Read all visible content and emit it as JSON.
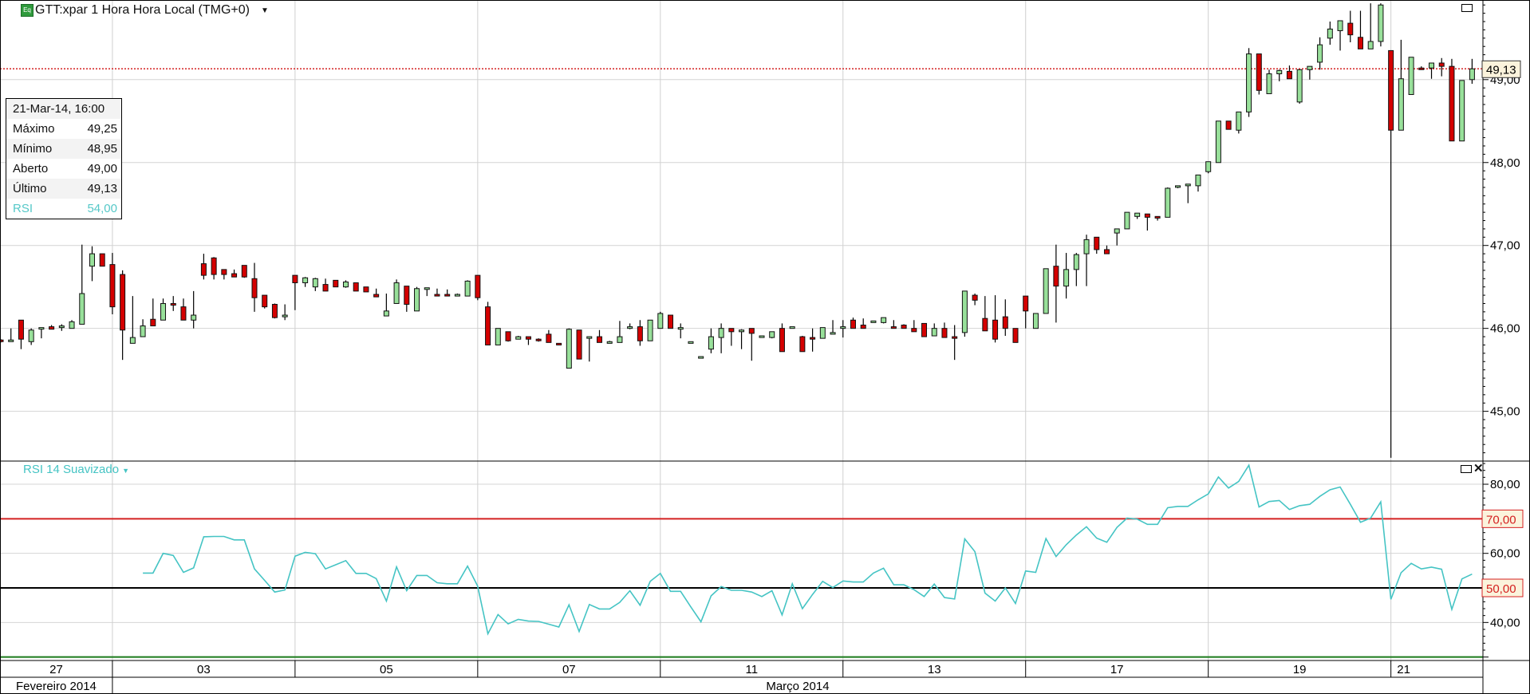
{
  "header": {
    "title": "GTT:xpar 1 Hora Hora Local (TMG+0)",
    "icon_text": "Eq",
    "dropdown_icon": "caret-down"
  },
  "info_panel": {
    "datetime": "21-Mar-14, 16:00",
    "rows": [
      {
        "label": "Máximo",
        "value": "49,25"
      },
      {
        "label": "Mínimo",
        "value": "48,95"
      },
      {
        "label": "Aberto",
        "value": "49,00"
      },
      {
        "label": "Último",
        "value": "49,13"
      },
      {
        "label": "RSI",
        "value": "54,00"
      }
    ]
  },
  "rsi_pane": {
    "label": "RSI 14 Suavizado",
    "maximize_icon": "window-maximize",
    "close_icon": "close"
  },
  "price_pane": {
    "maximize_icon": "window-maximize"
  },
  "colors": {
    "up": "#98e09a",
    "down": "#d40000",
    "rsi_line": "#45c4c4",
    "overbought": "#d42020",
    "midline": "#000000",
    "oversold": "#1a7a1a",
    "last_price": "#d42020"
  },
  "chart_data": [
    {
      "type": "candlestick",
      "ylim": [
        44.4,
        49.96
      ],
      "y_ticks": [
        {
          "v": 45,
          "label": "45,00"
        },
        {
          "v": 46,
          "label": "46,00"
        },
        {
          "v": 47,
          "label": "47,00"
        },
        {
          "v": 48,
          "label": "48,00"
        },
        {
          "v": 49,
          "label": "49,00"
        }
      ],
      "last_price": {
        "value": 49.13,
        "label": "49,13"
      },
      "grid": true,
      "ohlc": [
        [
          45.86,
          45.87,
          45.83,
          45.84
        ],
        [
          45.84,
          46.0,
          45.84,
          45.86
        ],
        [
          46.1,
          46.1,
          45.75,
          45.87
        ],
        [
          45.84,
          46.0,
          45.8,
          45.98
        ],
        [
          46.0,
          46.01,
          45.88,
          46.01
        ],
        [
          46.02,
          46.04,
          45.99,
          45.99
        ],
        [
          46.01,
          46.05,
          45.97,
          46.03
        ],
        [
          46.0,
          46.1,
          46.0,
          46.08
        ],
        [
          46.05,
          47.01,
          46.05,
          46.42
        ],
        [
          46.75,
          46.99,
          46.57,
          46.9
        ],
        [
          46.9,
          46.9,
          46.75,
          46.75
        ],
        [
          46.77,
          46.91,
          46.17,
          46.26
        ],
        [
          46.65,
          46.7,
          45.62,
          45.98
        ],
        [
          45.82,
          46.39,
          45.82,
          45.89
        ],
        [
          45.9,
          46.11,
          45.9,
          46.03
        ],
        [
          46.11,
          46.36,
          46.03,
          46.03
        ],
        [
          46.1,
          46.36,
          46.1,
          46.3
        ],
        [
          46.3,
          46.39,
          46.21,
          46.28
        ],
        [
          46.26,
          46.36,
          46.1,
          46.1
        ],
        [
          46.1,
          46.45,
          46.0,
          46.16
        ],
        [
          46.78,
          46.9,
          46.59,
          46.64
        ],
        [
          46.85,
          46.86,
          46.59,
          46.65
        ],
        [
          46.71,
          46.71,
          46.59,
          46.65
        ],
        [
          46.66,
          46.71,
          46.62,
          46.62
        ],
        [
          46.76,
          46.76,
          46.61,
          46.62
        ],
        [
          46.6,
          46.79,
          46.2,
          46.37
        ],
        [
          46.4,
          46.4,
          46.24,
          46.26
        ],
        [
          46.29,
          46.3,
          46.12,
          46.13
        ],
        [
          46.14,
          46.29,
          46.1,
          46.16
        ],
        [
          46.64,
          46.64,
          46.22,
          46.55
        ],
        [
          46.55,
          46.62,
          46.5,
          46.61
        ],
        [
          46.5,
          46.61,
          46.45,
          46.6
        ],
        [
          46.53,
          46.6,
          46.45,
          46.45
        ],
        [
          46.58,
          46.58,
          46.5,
          46.5
        ],
        [
          46.5,
          46.58,
          46.49,
          46.56
        ],
        [
          46.55,
          46.55,
          46.45,
          46.45
        ],
        [
          46.5,
          46.5,
          46.44,
          46.44
        ],
        [
          46.41,
          46.48,
          46.38,
          46.38
        ],
        [
          46.15,
          46.42,
          46.15,
          46.21
        ],
        [
          46.3,
          46.59,
          46.3,
          46.55
        ],
        [
          46.51,
          46.51,
          46.2,
          46.29
        ],
        [
          46.21,
          46.5,
          46.21,
          46.48
        ],
        [
          46.47,
          46.49,
          46.39,
          46.49
        ],
        [
          46.41,
          46.48,
          46.39,
          46.39
        ],
        [
          46.41,
          46.47,
          46.39,
          46.39
        ],
        [
          46.39,
          46.42,
          46.39,
          46.41
        ],
        [
          46.39,
          46.58,
          46.39,
          46.57
        ],
        [
          46.64,
          46.64,
          46.34,
          46.37
        ],
        [
          46.26,
          46.32,
          45.8,
          45.8
        ],
        [
          45.8,
          46.0,
          45.8,
          46.0
        ],
        [
          45.96,
          45.96,
          45.84,
          45.85
        ],
        [
          45.87,
          45.91,
          45.87,
          45.9
        ],
        [
          45.9,
          45.9,
          45.8,
          45.87
        ],
        [
          45.87,
          45.88,
          45.84,
          45.86
        ],
        [
          45.93,
          45.98,
          45.83,
          45.83
        ],
        [
          45.82,
          45.82,
          45.8,
          45.8
        ],
        [
          45.52,
          46.0,
          45.52,
          45.99
        ],
        [
          45.98,
          45.98,
          45.63,
          45.63
        ],
        [
          45.88,
          45.9,
          45.6,
          45.9
        ],
        [
          45.9,
          45.98,
          45.83,
          45.83
        ],
        [
          45.82,
          45.85,
          45.82,
          45.84
        ],
        [
          45.83,
          46.09,
          45.83,
          45.9
        ],
        [
          46.0,
          46.06,
          45.99,
          46.02
        ],
        [
          46.02,
          46.1,
          45.79,
          45.85
        ],
        [
          45.85,
          46.1,
          45.85,
          46.1
        ],
        [
          46.0,
          46.2,
          46.0,
          46.18
        ],
        [
          46.16,
          46.16,
          46.0,
          46.0
        ],
        [
          45.99,
          46.06,
          45.88,
          46.01
        ],
        [
          45.82,
          45.84,
          45.82,
          45.84
        ],
        [
          45.64,
          45.66,
          45.64,
          45.66
        ],
        [
          45.75,
          46.0,
          45.7,
          45.9
        ],
        [
          45.89,
          46.06,
          45.7,
          46.0
        ],
        [
          46.0,
          46.0,
          45.79,
          45.96
        ],
        [
          45.96,
          45.99,
          45.75,
          45.98
        ],
        [
          46.0,
          46.0,
          45.61,
          45.94
        ],
        [
          45.89,
          45.91,
          45.89,
          45.91
        ],
        [
          45.89,
          45.96,
          45.88,
          45.96
        ],
        [
          46.0,
          46.06,
          45.72,
          45.72
        ],
        [
          46.0,
          46.02,
          46.0,
          46.02
        ],
        [
          45.9,
          45.91,
          45.72,
          45.72
        ],
        [
          45.89,
          46.0,
          45.72,
          45.87
        ],
        [
          45.88,
          46.01,
          45.88,
          46.01
        ],
        [
          45.93,
          46.1,
          45.93,
          45.95
        ],
        [
          46.0,
          46.1,
          45.89,
          46.02
        ],
        [
          46.1,
          46.13,
          46.0,
          46.0
        ],
        [
          46.04,
          46.12,
          46.0,
          46.0
        ],
        [
          46.07,
          46.09,
          46.07,
          46.09
        ],
        [
          46.07,
          46.13,
          46.06,
          46.13
        ],
        [
          46.02,
          46.1,
          46.0,
          46.0
        ],
        [
          46.04,
          46.05,
          46.0,
          46.0
        ],
        [
          46.0,
          46.1,
          45.96,
          45.96
        ],
        [
          46.06,
          46.06,
          45.9,
          45.9
        ],
        [
          45.91,
          46.06,
          45.91,
          46.0
        ],
        [
          46.0,
          46.07,
          45.89,
          45.89
        ],
        [
          45.9,
          46.04,
          45.62,
          45.88
        ],
        [
          45.95,
          46.45,
          45.9,
          46.45
        ],
        [
          46.4,
          46.42,
          46.28,
          46.34
        ],
        [
          46.12,
          46.39,
          45.97,
          45.97
        ],
        [
          46.1,
          46.4,
          45.83,
          45.87
        ],
        [
          46.14,
          46.35,
          45.91,
          46.0
        ],
        [
          46.0,
          46.0,
          45.83,
          45.83
        ],
        [
          46.39,
          46.39,
          46.0,
          46.21
        ],
        [
          46.0,
          46.18,
          46.0,
          46.18
        ],
        [
          46.18,
          46.72,
          46.18,
          46.72
        ],
        [
          46.75,
          47.01,
          46.07,
          46.51
        ],
        [
          46.51,
          46.91,
          46.36,
          46.71
        ],
        [
          46.71,
          46.91,
          46.51,
          46.89
        ],
        [
          46.9,
          47.13,
          46.51,
          47.07
        ],
        [
          47.1,
          47.1,
          46.9,
          46.95
        ],
        [
          46.95,
          47.0,
          46.9,
          46.9
        ],
        [
          47.15,
          47.2,
          47.0,
          47.2
        ],
        [
          47.2,
          47.4,
          47.2,
          47.4
        ],
        [
          47.35,
          47.39,
          47.32,
          47.39
        ],
        [
          47.38,
          47.38,
          47.18,
          47.34
        ],
        [
          47.35,
          47.35,
          47.3,
          47.33
        ],
        [
          47.34,
          47.7,
          47.34,
          47.69
        ],
        [
          47.71,
          47.72,
          47.69,
          47.72
        ],
        [
          47.72,
          47.74,
          47.51,
          47.74
        ],
        [
          47.72,
          47.85,
          47.65,
          47.85
        ],
        [
          47.89,
          48.01,
          47.87,
          48.01
        ],
        [
          48.0,
          48.5,
          48.0,
          48.5
        ],
        [
          48.5,
          48.5,
          48.4,
          48.4
        ],
        [
          48.39,
          48.61,
          48.35,
          48.61
        ],
        [
          48.61,
          49.38,
          48.55,
          49.31
        ],
        [
          49.31,
          49.31,
          48.82,
          48.87
        ],
        [
          48.83,
          49.12,
          48.83,
          49.07
        ],
        [
          49.07,
          49.12,
          48.98,
          49.11
        ],
        [
          49.1,
          49.17,
          49.01,
          49.01
        ],
        [
          48.73,
          49.12,
          48.71,
          49.12
        ],
        [
          49.12,
          49.16,
          49.0,
          49.16
        ],
        [
          49.21,
          49.51,
          49.12,
          49.42
        ],
        [
          49.5,
          49.7,
          49.42,
          49.61
        ],
        [
          49.59,
          49.71,
          49.35,
          49.71
        ],
        [
          49.68,
          49.83,
          49.45,
          49.54
        ],
        [
          49.51,
          49.83,
          49.37,
          49.37
        ],
        [
          49.37,
          49.92,
          49.37,
          49.46
        ],
        [
          49.46,
          49.92,
          49.4,
          49.9
        ],
        [
          49.35,
          49.35,
          44.44,
          48.39
        ],
        [
          48.39,
          49.48,
          48.39,
          49.01
        ],
        [
          48.82,
          49.27,
          48.82,
          49.27
        ],
        [
          49.14,
          49.16,
          49.12,
          49.12
        ],
        [
          49.14,
          49.2,
          49.01,
          49.2
        ],
        [
          49.2,
          49.26,
          49.04,
          49.16
        ],
        [
          49.16,
          49.25,
          48.26,
          48.26
        ],
        [
          48.26,
          48.99,
          48.26,
          48.99
        ],
        [
          49.0,
          49.25,
          48.95,
          49.13
        ]
      ]
    },
    {
      "type": "line",
      "name": "RSI 14 Suavizado",
      "ylim": [
        29,
        86.7
      ],
      "y_ticks": [
        {
          "v": 40,
          "label": "40,00"
        },
        {
          "v": 60,
          "label": "60,00"
        },
        {
          "v": 80,
          "label": "80,00"
        }
      ],
      "levels": [
        {
          "v": 70,
          "label": "70,00",
          "color": "#d42020",
          "boxed": true
        },
        {
          "v": 50,
          "label": "50,00",
          "color": "#000000",
          "boxed": true
        },
        {
          "v": 30,
          "label": "",
          "color": "#1a7a1a",
          "boxed": false
        }
      ],
      "grid": true,
      "values": [
        null,
        null,
        null,
        null,
        null,
        null,
        null,
        null,
        null,
        null,
        null,
        null,
        null,
        null,
        54.3,
        54.3,
        60.0,
        59.4,
        54.5,
        55.8,
        64.8,
        64.9,
        64.9,
        63.9,
        63.9,
        55.5,
        52.2,
        48.8,
        49.4,
        59.2,
        60.3,
        59.9,
        55.5,
        56.7,
        57.9,
        54.2,
        54.2,
        52.7,
        46.2,
        56.1,
        49.2,
        53.6,
        53.6,
        51.5,
        51.2,
        51.2,
        56.3,
        50.5,
        36.7,
        42.3,
        39.6,
        40.9,
        40.4,
        40.3,
        39.5,
        38.7,
        45.1,
        37.4,
        45.2,
        43.9,
        43.9,
        45.8,
        49.2,
        45.0,
        51.9,
        54.2,
        49.0,
        49.0,
        44.5,
        40.2,
        47.7,
        50.4,
        49.3,
        49.3,
        48.8,
        47.5,
        49.2,
        42.2,
        51.2,
        44.0,
        48.1,
        51.9,
        50.1,
        52.0,
        51.7,
        51.7,
        54.3,
        55.7,
        50.9,
        50.9,
        49.5,
        47.5,
        51.1,
        47.2,
        46.8,
        64.2,
        60.5,
        48.5,
        46.2,
        50.0,
        45.5,
        54.9,
        54.5,
        64.3,
        59.1,
        62.5,
        65.3,
        67.7,
        64.4,
        63.2,
        67.5,
        70.2,
        69.9,
        68.4,
        68.4,
        73.2,
        73.6,
        73.6,
        75.5,
        77.2,
        82.1,
        78.9,
        80.8,
        85.5,
        73.4,
        75.0,
        75.3,
        72.7,
        73.8,
        74.2,
        76.5,
        78.4,
        79.2,
        74.2,
        69.0,
        70.2,
        74.9,
        46.7,
        54.4,
        57.1,
        55.5,
        56.0,
        55.4,
        43.8,
        52.6,
        54.0
      ]
    }
  ],
  "x_axis": {
    "days": [
      {
        "label": "27",
        "first_candle": 1
      },
      {
        "label": "03",
        "first_candle": 12
      },
      {
        "label": "05",
        "first_candle": 30
      },
      {
        "label": "07",
        "first_candle": 48
      },
      {
        "label": "11",
        "first_candle": 66
      },
      {
        "label": "13",
        "first_candle": 84
      },
      {
        "label": "17",
        "first_candle": 102
      },
      {
        "label": "19",
        "first_candle": 120
      },
      {
        "label": "21",
        "first_candle": 138
      }
    ],
    "months": [
      {
        "label": "Fevereiro 2014",
        "first_candle": 1
      },
      {
        "label": "Março 2014",
        "first_candle": 12
      }
    ]
  }
}
